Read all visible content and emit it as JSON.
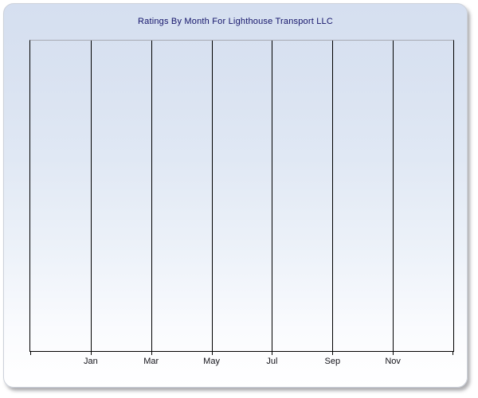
{
  "window": {
    "title": "Ratings By Month For Lighthouse Transport LLC"
  },
  "chart_data": {
    "type": "line",
    "title": "Ratings By Month For Lighthouse Transport LLC",
    "categories": [
      "Jan",
      "Mar",
      "May",
      "Jul",
      "Sep",
      "Nov"
    ],
    "series": [],
    "xlabel": "",
    "ylabel": "",
    "y_tick_labels": [],
    "grid": "vertical-only",
    "legend": "none",
    "plot_empty": true
  },
  "colors": {
    "panel_gradient_top": "#d5dff0",
    "panel_gradient_bottom": "#ffffff",
    "title_text": "#14146a",
    "axis_label_text": "#121218",
    "gridline": "#000000",
    "plot_top_border": "#a6a9b2",
    "panel_border": "#ccd1da"
  }
}
